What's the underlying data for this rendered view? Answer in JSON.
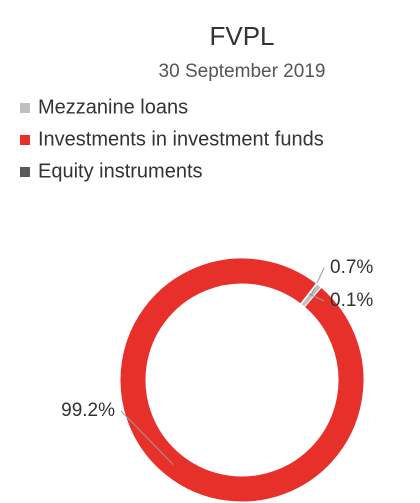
{
  "chart_data": {
    "type": "donut",
    "title": "FVPL",
    "subtitle": "30 September 2019",
    "categories": [
      "Mezzanine loans",
      "Investments in investment funds",
      "Equity instruments"
    ],
    "values": [
      0.7,
      99.2,
      0.1
    ],
    "value_labels": [
      "0.7%",
      "99.2%",
      "0.1%"
    ],
    "colors": [
      "#bfbfbf",
      "#e8302a",
      "#595959"
    ],
    "legend": "top-left"
  }
}
